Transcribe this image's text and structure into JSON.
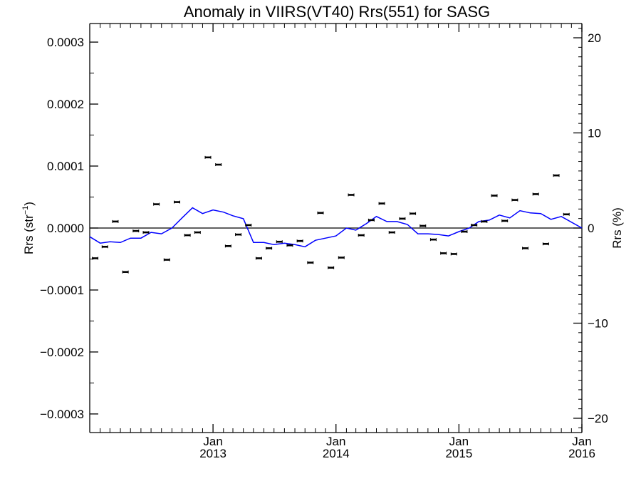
{
  "chart_data": {
    "type": "scatter",
    "title": "Anomaly in VIIRS(VT40) Rrs(551) for SASG",
    "ylabel_left": {
      "text": "Rrs (str",
      "superscript": "−1",
      "suffix": ")"
    },
    "ylabel_right": "Rrs (%)",
    "xlim": [
      "2012-01-01",
      "2016-01-01"
    ],
    "ylim_left": [
      -0.00033,
      0.00033
    ],
    "ylim_right": [
      -21.5,
      21.5
    ],
    "left_ticks": [
      {
        "value": 0.0003,
        "label": "0.0003"
      },
      {
        "value": 0.0002,
        "label": "0.0002"
      },
      {
        "value": 0.0001,
        "label": "0.0001"
      },
      {
        "value": 0.0,
        "label": "0.0000"
      },
      {
        "value": -0.0001,
        "label": "−0.0001"
      },
      {
        "value": -0.0002,
        "label": "−0.0002"
      },
      {
        "value": -0.0003,
        "label": "−0.0003"
      }
    ],
    "right_ticks": [
      {
        "value": 20,
        "label": "20"
      },
      {
        "value": 10,
        "label": "10"
      },
      {
        "value": 0,
        "label": "0"
      },
      {
        "value": -10,
        "label": "−10"
      },
      {
        "value": -20,
        "label": "−20"
      }
    ],
    "x_ticks": [
      {
        "date": "2013-01-01",
        "month": "Jan",
        "year": "2013"
      },
      {
        "date": "2014-01-01",
        "month": "Jan",
        "year": "2014"
      },
      {
        "date": "2015-01-01",
        "month": "Jan",
        "year": "2015"
      },
      {
        "date": "2016-01-01",
        "month": "Jan",
        "year": "2016"
      }
    ],
    "zero_line": 0,
    "series": [
      {
        "kind": "points",
        "color": "#000000",
        "points": [
          [
            "2012-01-17",
            -4.88e-05
          ],
          [
            "2012-02-15",
            -3.02e-05
          ],
          [
            "2012-03-17",
            1.05e-05
          ],
          [
            "2012-04-16",
            -7.09e-05
          ],
          [
            "2012-05-17",
            -4.7e-06
          ],
          [
            "2012-06-16",
            -7e-06
          ],
          [
            "2012-07-17",
            3.84e-05
          ],
          [
            "2012-08-17",
            -5.12e-05
          ],
          [
            "2012-09-16",
            4.19e-05
          ],
          [
            "2012-10-17",
            -1.16e-05
          ],
          [
            "2012-11-16",
            -7e-06
          ],
          [
            "2012-12-17",
            0.000114
          ],
          [
            "2013-01-17",
            0.0001023
          ],
          [
            "2013-02-15",
            -2.91e-05
          ],
          [
            "2013-03-17",
            -1.05e-05
          ],
          [
            "2013-04-16",
            4.7e-06
          ],
          [
            "2013-05-17",
            -4.88e-05
          ],
          [
            "2013-06-16",
            -3.26e-05
          ],
          [
            "2013-07-17",
            -2.21e-05
          ],
          [
            "2013-08-17",
            -2.79e-05
          ],
          [
            "2013-09-16",
            -2.09e-05
          ],
          [
            "2013-10-17",
            -5.58e-05
          ],
          [
            "2013-11-16",
            2.44e-05
          ],
          [
            "2013-12-17",
            -6.4e-05
          ],
          [
            "2014-01-17",
            -4.77e-05
          ],
          [
            "2014-02-15",
            5.35e-05
          ],
          [
            "2014-03-17",
            -1.16e-05
          ],
          [
            "2014-04-16",
            1.28e-05
          ],
          [
            "2014-05-17",
            3.96e-05
          ],
          [
            "2014-06-16",
            -7e-06
          ],
          [
            "2014-07-17",
            1.51e-05
          ],
          [
            "2014-08-17",
            2.33e-05
          ],
          [
            "2014-09-16",
            3.5e-06
          ],
          [
            "2014-10-17",
            -1.86e-05
          ],
          [
            "2014-11-16",
            -4.07e-05
          ],
          [
            "2014-12-17",
            -4.19e-05
          ],
          [
            "2015-01-17",
            -5.8e-06
          ],
          [
            "2015-02-15",
            4.7e-06
          ],
          [
            "2015-03-17",
            1.05e-05
          ],
          [
            "2015-04-16",
            5.23e-05
          ],
          [
            "2015-05-17",
            1.16e-05
          ],
          [
            "2015-06-16",
            4.53e-05
          ],
          [
            "2015-07-17",
            -3.26e-05
          ],
          [
            "2015-08-17",
            5.47e-05
          ],
          [
            "2015-09-16",
            -2.56e-05
          ],
          [
            "2015-10-17",
            8.49e-05
          ],
          [
            "2015-11-16",
            2.21e-05
          ]
        ]
      },
      {
        "kind": "line",
        "color": "#0000ff",
        "points": [
          [
            "2012-01-01",
            -1.4e-05
          ],
          [
            "2012-02-01",
            -2.44e-05
          ],
          [
            "2012-03-01",
            -2.21e-05
          ],
          [
            "2012-04-01",
            -2.33e-05
          ],
          [
            "2012-05-01",
            -1.63e-05
          ],
          [
            "2012-06-01",
            -1.63e-05
          ],
          [
            "2012-07-01",
            -7e-06
          ],
          [
            "2012-08-01",
            -9.3e-06
          ],
          [
            "2012-09-01",
            0.0
          ],
          [
            "2012-10-01",
            1.63e-05
          ],
          [
            "2012-11-01",
            3.26e-05
          ],
          [
            "2012-12-01",
            2.33e-05
          ],
          [
            "2013-01-01",
            2.91e-05
          ],
          [
            "2013-02-01",
            2.56e-05
          ],
          [
            "2013-03-01",
            1.98e-05
          ],
          [
            "2013-04-01",
            1.51e-05
          ],
          [
            "2013-05-01",
            -2.33e-05
          ],
          [
            "2013-06-01",
            -2.33e-05
          ],
          [
            "2013-07-01",
            -2.68e-05
          ],
          [
            "2013-08-01",
            -2.44e-05
          ],
          [
            "2013-09-01",
            -2.68e-05
          ],
          [
            "2013-10-01",
            -3.02e-05
          ],
          [
            "2013-11-01",
            -1.98e-05
          ],
          [
            "2013-12-01",
            -1.63e-05
          ],
          [
            "2014-01-01",
            -1.28e-05
          ],
          [
            "2014-02-01",
            0.0
          ],
          [
            "2014-03-01",
            -3.5e-06
          ],
          [
            "2014-04-01",
            7e-06
          ],
          [
            "2014-05-01",
            1.86e-05
          ],
          [
            "2014-06-01",
            1.05e-05
          ],
          [
            "2014-07-01",
            1.05e-05
          ],
          [
            "2014-08-01",
            5.8e-06
          ],
          [
            "2014-09-01",
            -9.3e-06
          ],
          [
            "2014-10-01",
            -9.3e-06
          ],
          [
            "2014-11-01",
            -1.05e-05
          ],
          [
            "2014-12-01",
            -1.28e-05
          ],
          [
            "2015-01-01",
            -5.8e-06
          ],
          [
            "2015-02-01",
            0.0
          ],
          [
            "2015-03-01",
            1.05e-05
          ],
          [
            "2015-04-01",
            1.28e-05
          ],
          [
            "2015-05-01",
            2.09e-05
          ],
          [
            "2015-06-01",
            1.63e-05
          ],
          [
            "2015-07-01",
            2.79e-05
          ],
          [
            "2015-08-01",
            2.44e-05
          ],
          [
            "2015-09-01",
            2.33e-05
          ],
          [
            "2015-10-01",
            1.4e-05
          ],
          [
            "2015-11-01",
            1.86e-05
          ],
          [
            "2016-01-01",
            0.0
          ]
        ]
      }
    ],
    "grid": false,
    "legend": "none"
  }
}
